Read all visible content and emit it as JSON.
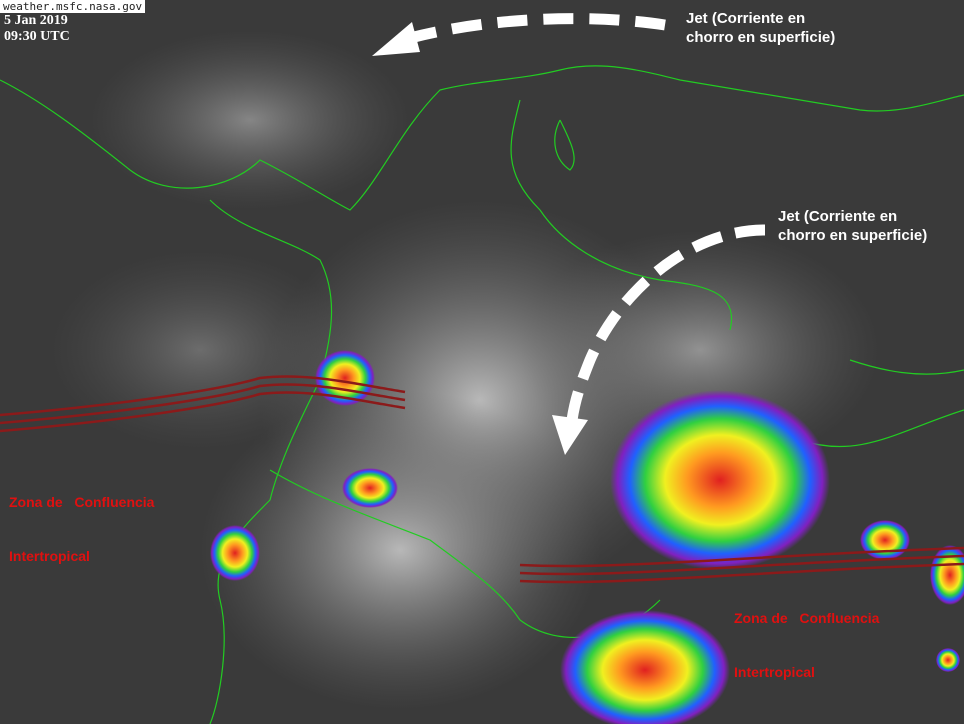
{
  "source": "weather.msfc.nasa.gov",
  "date": "5 Jan 2019",
  "time": "09:30 UTC",
  "annotations": {
    "jet_1": {
      "line1": "Jet (Corriente en",
      "line2": "chorro en superficie)"
    },
    "jet_2": {
      "line1": "Jet (Corriente en",
      "line2": "chorro en superficie)"
    },
    "itcz_1": {
      "line1": "Zona de   Confluencia",
      "line2": "Intertropical"
    },
    "itcz_2": {
      "line1": "Zona de   Confluencia",
      "line2": "Intertropical"
    }
  },
  "colors": {
    "coastline": "#22cc22",
    "itcz": "#8b1a1a",
    "arrow": "#ffffff",
    "label_red": "#e01010"
  }
}
